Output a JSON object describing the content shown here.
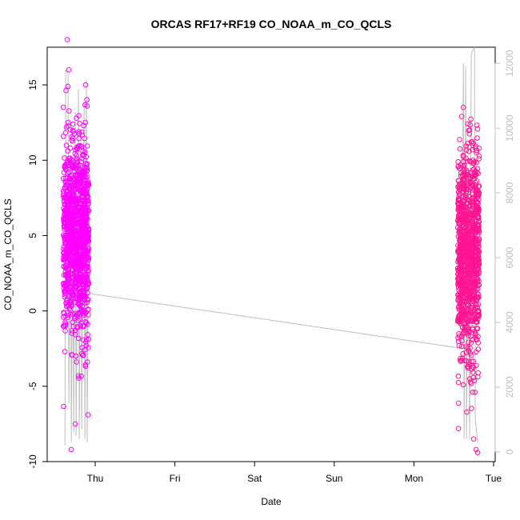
{
  "chart_data": {
    "type": "scatter",
    "title": "ORCAS RF17+RF19 CO_NOAA_m_CO_QCLS",
    "xlabel": "Date",
    "ylabel": "CO_NOAA_m_CO_QCLS",
    "x_tick_labels": [
      "Thu",
      "Fri",
      "Sat",
      "Sun",
      "Mon",
      "Tue"
    ],
    "y_ticks": [
      -10,
      -5,
      0,
      5,
      10,
      15
    ],
    "y_tick_labels": [
      "-10",
      "-5",
      "0",
      "5",
      "10",
      "15"
    ],
    "ylim": [
      -10,
      17.5
    ],
    "y2_ticks": [
      0,
      2000,
      4000,
      6000,
      8000,
      10000,
      12000
    ],
    "y2_tick_labels": [
      "0",
      "2000",
      "4000",
      "6000",
      "8000",
      "10000",
      "12000"
    ],
    "y2lim": [
      -300,
      12500
    ],
    "grid": false,
    "legend": "none",
    "colors": {
      "rf17_points": "#ff00ff",
      "rf19_points": "#ff1493",
      "altitude_line": "#bebebe",
      "right_axis": "#bebebe"
    },
    "series": [
      {
        "x_day_range": [
          -0.4,
          -0.08
        ],
        "y_mean": 4.8,
        "y_sd": 3.2,
        "y_min": -9.2,
        "y_max": 18.0,
        "n_points": 1100,
        "outliers": [
          [
            -0.35,
            18.0
          ],
          [
            -0.33,
            16.0
          ],
          [
            -0.3,
            -9.2
          ],
          [
            -0.25,
            -7.5
          ],
          [
            -0.12,
            15.0
          ],
          [
            -0.1,
            13.6
          ],
          [
            -0.09,
            -6.9
          ],
          [
            -0.38,
            -2.7
          ]
        ]
      },
      {
        "x_day_range": [
          4.55,
          4.82
        ],
        "y_mean": 3.5,
        "y_sd": 3.4,
        "y_min": -9.4,
        "y_max": 13.5,
        "n_points": 1100,
        "outliers": [
          [
            4.6,
            12.9
          ],
          [
            4.62,
            13.5
          ],
          [
            4.78,
            -9.2
          ],
          [
            4.8,
            -9.4
          ],
          [
            4.58,
            -3.3
          ],
          [
            4.75,
            -8.5
          ],
          [
            4.7,
            12.0
          ]
        ]
      }
    ],
    "altitude_line": {
      "description_free": true,
      "points_day_y2": [
        [
          -0.38,
          200
        ],
        [
          -0.37,
          11800
        ],
        [
          -0.34,
          11700
        ],
        [
          -0.33,
          1500
        ],
        [
          -0.31,
          9000
        ],
        [
          -0.3,
          300
        ],
        [
          -0.28,
          7500
        ],
        [
          -0.27,
          600
        ],
        [
          -0.25,
          10500
        ],
        [
          -0.24,
          500
        ],
        [
          -0.21,
          11200
        ],
        [
          -0.2,
          400
        ],
        [
          -0.18,
          9800
        ],
        [
          -0.17,
          700
        ],
        [
          -0.14,
          10800
        ],
        [
          -0.13,
          400
        ],
        [
          -0.11,
          11500
        ],
        [
          -0.1,
          300
        ],
        [
          -0.09,
          4900
        ],
        [
          4.6,
          3200
        ],
        [
          4.62,
          12000
        ],
        [
          4.63,
          400
        ],
        [
          4.65,
          11900
        ],
        [
          4.66,
          400
        ],
        [
          4.68,
          8000
        ],
        [
          4.7,
          400
        ],
        [
          4.72,
          12300
        ],
        [
          4.76,
          12500
        ],
        [
          4.77,
          1000
        ],
        [
          4.8,
          300
        ]
      ]
    }
  }
}
